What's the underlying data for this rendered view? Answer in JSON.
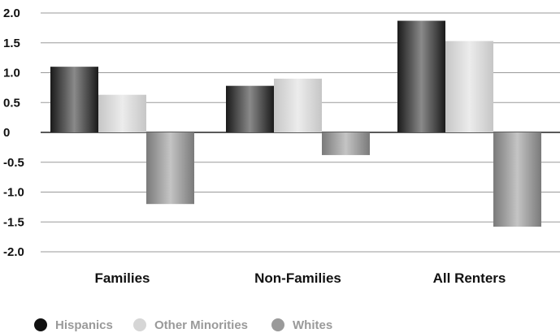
{
  "chart_data": {
    "type": "bar",
    "categories": [
      "Families",
      "Non-Families",
      "All Renters"
    ],
    "series": [
      {
        "name": "Hispanics",
        "values": [
          1.1,
          0.78,
          1.87
        ],
        "color": "#4a4a4a"
      },
      {
        "name": "Other Minorities",
        "values": [
          0.63,
          0.9,
          1.53
        ],
        "color": "#d6d6d6"
      },
      {
        "name": "Whites",
        "values": [
          -1.2,
          -0.38,
          -1.58
        ],
        "color": "#9a9a9a"
      }
    ],
    "ylim": [
      -2.0,
      2.0
    ],
    "yticks": [
      "2.0",
      "1.5",
      "1.0",
      "0.5",
      "0",
      "-0.5",
      "-1.0",
      "-1.5",
      "-2.0"
    ],
    "grid": true,
    "legend_position": "bottom-left",
    "title": "",
    "xlabel": "",
    "ylabel": ""
  }
}
